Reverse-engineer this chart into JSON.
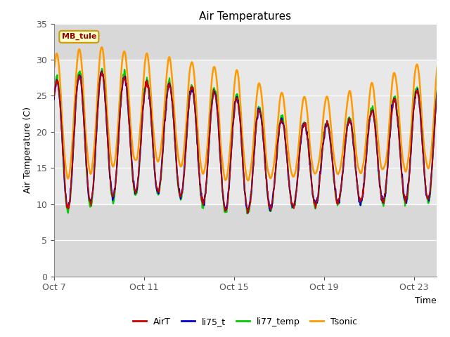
{
  "title": "Air Temperatures",
  "xlabel": "Time",
  "ylabel": "Air Temperature (C)",
  "ylim": [
    0,
    35
  ],
  "yticks": [
    0,
    5,
    10,
    15,
    20,
    25,
    30,
    35
  ],
  "n_days": 18,
  "series": {
    "AirT": {
      "color": "#cc0000",
      "lw": 1.2,
      "zorder": 4
    },
    "li75_t": {
      "color": "#0000cc",
      "lw": 1.5,
      "zorder": 3
    },
    "li77_temp": {
      "color": "#00cc00",
      "lw": 1.5,
      "zorder": 2
    },
    "Tsonic": {
      "color": "#ff9900",
      "lw": 1.8,
      "zorder": 1
    }
  },
  "legend_order": [
    "AirT",
    "li75_t",
    "li77_temp",
    "Tsonic"
  ],
  "xtick_labels": [
    "Oct 7",
    "Oct 11",
    "Oct 15",
    "Oct 19",
    "Oct 23"
  ],
  "xtick_positions": [
    0,
    4,
    8,
    12,
    16
  ],
  "annotation_text": "MB_tule",
  "annotation_color": "#990000",
  "annotation_bg": "#ffffcc",
  "annotation_border": "#cc9900",
  "bg_white_ymin": 10,
  "bg_white_ymax": 30,
  "bg_gray_color": "#d8d8d8",
  "bg_white_color": "#e8e8e8",
  "plot_bg": "#ffffff",
  "grid_color": "#cccccc"
}
